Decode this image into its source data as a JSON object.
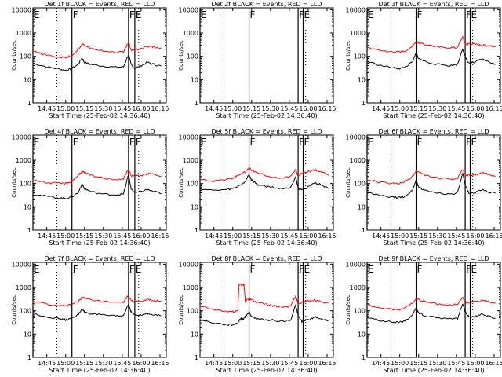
{
  "chart_data": {
    "type": "line",
    "x_tick_labels": [
      "14:45",
      "15:00",
      "15:15",
      "15:30",
      "15:45",
      "16:00",
      "16:15"
    ],
    "x_tick_minutes": [
      885,
      900,
      915,
      930,
      945,
      960,
      975
    ],
    "xlim_minutes": [
      874,
      980
    ],
    "y_tick_labels": [
      "1",
      "10",
      "100",
      "1000",
      "10000"
    ],
    "ylim": [
      1,
      12000
    ],
    "y_scale": "log",
    "ylabel": "Counts/sec",
    "xlabel": "Start Time (25-Feb-02 14:36:40)",
    "series_colors": {
      "events": "#000000",
      "lld": "#ff0000"
    },
    "panels": [
      {
        "title": "Det 1f BLACK = Events, RED = LLD",
        "markers": [
          {
            "label": "E",
            "minute": 874
          },
          {
            "label": "F",
            "minute": 905
          },
          {
            "label": "F",
            "minute": 950
          },
          {
            "label": "E",
            "minute": 955
          }
        ],
        "dotted_lines": [
          893,
          958
        ],
        "events": {
          "x": [
            874,
            885,
            895,
            900,
            904,
            910,
            913,
            915,
            920,
            930,
            940,
            946,
            950,
            952,
            955,
            960,
            965,
            970,
            976
          ],
          "y": [
            50,
            35,
            28,
            25,
            28,
            45,
            85,
            55,
            45,
            38,
            34,
            35,
            120,
            45,
            30,
            40,
            55,
            45,
            38
          ]
        },
        "lld": {
          "x": [
            874,
            885,
            895,
            900,
            904,
            910,
            913,
            915,
            920,
            930,
            940,
            946,
            950,
            952,
            955,
            960,
            965,
            970,
            976
          ],
          "y": [
            160,
            110,
            90,
            90,
            100,
            200,
            330,
            300,
            230,
            170,
            150,
            155,
            400,
            180,
            190,
            210,
            270,
            250,
            210
          ]
        }
      },
      {
        "title": "Det 2f BLACK = Events, RED = LLD",
        "markers": [
          {
            "label": "E",
            "minute": 874
          },
          {
            "label": "F",
            "minute": 913
          },
          {
            "label": "F",
            "minute": 952
          },
          {
            "label": "E",
            "minute": 956
          }
        ],
        "dotted_lines": [
          893,
          958
        ],
        "events": {
          "x": [],
          "y": []
        },
        "lld": {
          "x": [],
          "y": []
        }
      },
      {
        "title": "Det 3f BLACK = Events, RED = LLD",
        "markers": [
          {
            "label": "E",
            "minute": 874
          },
          {
            "label": "F",
            "minute": 913
          },
          {
            "label": "F",
            "minute": 952
          },
          {
            "label": "E",
            "minute": 956
          }
        ],
        "dotted_lines": [
          893,
          958
        ],
        "events": {
          "x": [
            874,
            885,
            895,
            900,
            904,
            910,
            913,
            915,
            920,
            930,
            940,
            946,
            950,
            952,
            955,
            960,
            965,
            970,
            976
          ],
          "y": [
            60,
            40,
            32,
            30,
            34,
            55,
            140,
            80,
            60,
            45,
            40,
            45,
            220,
            90,
            50,
            55,
            75,
            60,
            45
          ]
        },
        "lld": {
          "x": [
            874,
            885,
            895,
            900,
            904,
            910,
            913,
            915,
            920,
            930,
            940,
            946,
            950,
            952,
            955,
            960,
            965,
            970,
            976
          ],
          "y": [
            240,
            180,
            150,
            150,
            170,
            250,
            420,
            380,
            320,
            260,
            230,
            250,
            700,
            320,
            350,
            330,
            300,
            280,
            260
          ]
        }
      },
      {
        "title": "Det 4f BLACK = Events, RED = LLD",
        "markers": [
          {
            "label": "E",
            "minute": 874
          },
          {
            "label": "F",
            "minute": 905
          },
          {
            "label": "F",
            "minute": 950
          },
          {
            "label": "E",
            "minute": 955
          }
        ],
        "dotted_lines": [
          893,
          958
        ],
        "events": {
          "x": [
            874,
            885,
            895,
            900,
            904,
            910,
            913,
            915,
            920,
            930,
            940,
            946,
            950,
            952,
            955,
            960,
            965,
            970,
            976
          ],
          "y": [
            35,
            28,
            24,
            23,
            25,
            40,
            95,
            60,
            45,
            35,
            33,
            35,
            250,
            60,
            40,
            45,
            55,
            45,
            38
          ]
        },
        "lld": {
          "x": [
            874,
            885,
            895,
            900,
            904,
            910,
            913,
            915,
            920,
            930,
            940,
            946,
            950,
            952,
            955,
            960,
            965,
            970,
            976
          ],
          "y": [
            140,
            110,
            100,
            100,
            120,
            220,
            330,
            290,
            220,
            170,
            150,
            160,
            420,
            220,
            210,
            220,
            260,
            250,
            210
          ]
        }
      },
      {
        "title": "Det 5f BLACK = Events, RED = LLD",
        "markers": [
          {
            "label": "E",
            "minute": 874
          },
          {
            "label": "F",
            "minute": 913
          },
          {
            "label": "F",
            "minute": 952
          },
          {
            "label": "E",
            "minute": 956
          }
        ],
        "dotted_lines": [
          893,
          958
        ],
        "events": {
          "x": [
            874,
            885,
            895,
            900,
            904,
            910,
            913,
            915,
            920,
            930,
            940,
            946,
            950,
            952,
            955,
            960,
            965,
            970,
            976
          ],
          "y": [
            60,
            50,
            55,
            60,
            75,
            120,
            250,
            140,
            90,
            70,
            60,
            70,
            200,
            60,
            55,
            70,
            110,
            90,
            60
          ]
        },
        "lld": {
          "x": [
            874,
            885,
            895,
            900,
            904,
            910,
            913,
            915,
            920,
            930,
            940,
            946,
            950,
            952,
            955,
            960,
            965,
            970,
            976
          ],
          "y": [
            150,
            130,
            150,
            170,
            220,
            320,
            450,
            380,
            280,
            200,
            170,
            200,
            400,
            190,
            280,
            330,
            380,
            330,
            220
          ]
        }
      },
      {
        "title": "Det 6f BLACK = Events, RED = LLD",
        "markers": [
          {
            "label": "E",
            "minute": 874
          },
          {
            "label": "F",
            "minute": 913
          },
          {
            "label": "F",
            "minute": 952
          },
          {
            "label": "E",
            "minute": 956
          }
        ],
        "dotted_lines": [
          893,
          958
        ],
        "events": {
          "x": [
            874,
            885,
            895,
            900,
            904,
            910,
            913,
            915,
            920,
            930,
            940,
            946,
            950,
            952,
            955,
            960,
            965,
            970,
            976
          ],
          "y": [
            40,
            30,
            25,
            25,
            28,
            50,
            140,
            70,
            50,
            40,
            35,
            40,
            270,
            80,
            40,
            40,
            55,
            45,
            38
          ]
        },
        "lld": {
          "x": [
            874,
            885,
            895,
            900,
            904,
            910,
            913,
            915,
            920,
            930,
            940,
            946,
            950,
            952,
            955,
            960,
            965,
            970,
            976
          ],
          "y": [
            150,
            110,
            100,
            100,
            120,
            200,
            330,
            300,
            230,
            170,
            150,
            160,
            420,
            220,
            230,
            240,
            280,
            250,
            200
          ]
        }
      },
      {
        "title": "Det 7f BLACK = Events, RED = LLD",
        "markers": [
          {
            "label": "E",
            "minute": 874
          },
          {
            "label": "F",
            "minute": 905
          },
          {
            "label": "F",
            "minute": 950
          },
          {
            "label": "E",
            "minute": 955
          }
        ],
        "dotted_lines": [
          893,
          958
        ],
        "events": {
          "x": [
            874,
            885,
            895,
            900,
            904,
            910,
            913,
            915,
            920,
            930,
            940,
            946,
            950,
            952,
            955,
            960,
            965,
            970,
            976
          ],
          "y": [
            80,
            55,
            45,
            40,
            45,
            70,
            120,
            90,
            75,
            65,
            58,
            62,
            200,
            90,
            65,
            65,
            75,
            70,
            60
          ]
        },
        "lld": {
          "x": [
            874,
            885,
            895,
            900,
            904,
            910,
            913,
            915,
            920,
            930,
            940,
            946,
            950,
            952,
            955,
            960,
            965,
            970,
            976
          ],
          "y": [
            260,
            190,
            160,
            160,
            180,
            260,
            370,
            340,
            290,
            240,
            220,
            230,
            480,
            260,
            250,
            260,
            290,
            280,
            250
          ]
        }
      },
      {
        "title": "Det 8f BLACK = Events, RED = LLD",
        "markers": [
          {
            "label": "F",
            "minute": 913
          },
          {
            "label": "F",
            "minute": 952
          },
          {
            "label": "E",
            "minute": 956
          }
        ],
        "dotted_lines": [
          893,
          958
        ],
        "events": {
          "x": [
            874,
            885,
            895,
            900,
            904,
            906,
            908,
            910,
            913,
            915,
            920,
            930,
            940,
            946,
            950,
            952,
            955,
            960,
            965,
            970,
            976
          ],
          "y": [
            40,
            30,
            25,
            25,
            30,
            45,
            45,
            55,
            90,
            55,
            45,
            40,
            35,
            40,
            170,
            60,
            35,
            40,
            55,
            45,
            38
          ]
        },
        "lld": {
          "x": [
            874,
            885,
            895,
            900,
            904,
            905,
            909,
            910,
            913,
            915,
            920,
            930,
            940,
            946,
            950,
            952,
            955,
            960,
            965,
            970,
            976
          ],
          "y": [
            170,
            110,
            90,
            90,
            100,
            1300,
            1300,
            260,
            330,
            300,
            230,
            170,
            150,
            160,
            420,
            200,
            220,
            260,
            280,
            250,
            210
          ]
        }
      },
      {
        "title": "Det 9f BLACK = Events, RED = LLD",
        "markers": [
          {
            "label": "E",
            "minute": 874
          },
          {
            "label": "F",
            "minute": 913
          },
          {
            "label": "F",
            "minute": 952
          },
          {
            "label": "E",
            "minute": 956
          }
        ],
        "dotted_lines": [
          893,
          958
        ],
        "events": {
          "x": [
            874,
            885,
            895,
            900,
            904,
            910,
            913,
            915,
            920,
            930,
            940,
            946,
            950,
            952,
            955,
            960,
            965,
            970,
            976
          ],
          "y": [
            50,
            38,
            32,
            32,
            36,
            60,
            140,
            80,
            60,
            50,
            45,
            48,
            200,
            90,
            55,
            55,
            70,
            60,
            48
          ]
        },
        "lld": {
          "x": [
            874,
            885,
            895,
            900,
            904,
            910,
            913,
            915,
            920,
            930,
            940,
            946,
            950,
            952,
            955,
            960,
            965,
            970,
            976
          ],
          "y": [
            180,
            130,
            110,
            110,
            130,
            220,
            330,
            300,
            240,
            190,
            170,
            180,
            380,
            220,
            230,
            240,
            270,
            250,
            220
          ]
        }
      }
    ]
  }
}
